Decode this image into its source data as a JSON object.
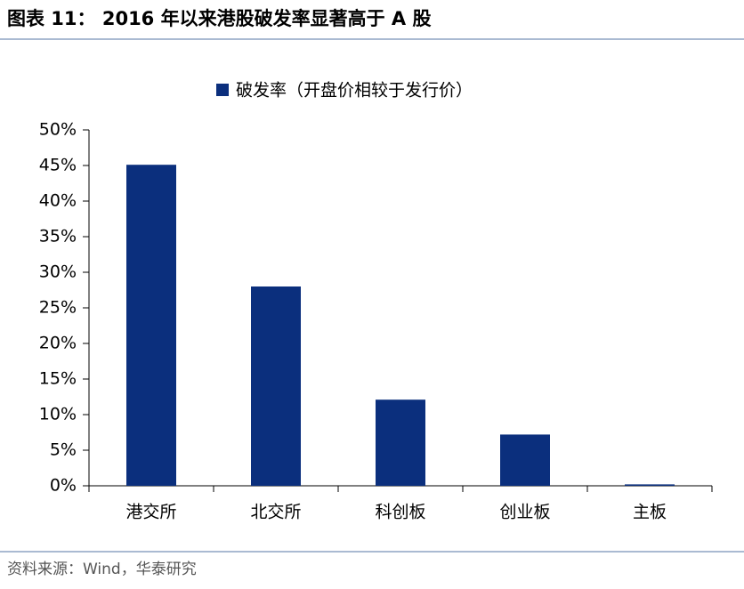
{
  "chart_data": {
    "type": "bar",
    "title": "图表 11：  2016 年以来港股破发率显著高于 A 股",
    "source": "资料来源：Wind，华泰研究",
    "categories": [
      "港交所",
      "北交所",
      "科创板",
      "创业板",
      "主板"
    ],
    "series": [
      {
        "name": "破发率（开盘价相较于发行价）",
        "color": "#0b2f7d",
        "values": [
          45.1,
          28.0,
          12.1,
          7.2,
          0.2
        ]
      }
    ],
    "ylim": [
      0,
      50
    ],
    "yticks": [
      {
        "value": 0,
        "label": "0%"
      },
      {
        "value": 5,
        "label": "5%"
      },
      {
        "value": 10,
        "label": "10%"
      },
      {
        "value": 15,
        "label": "15%"
      },
      {
        "value": 20,
        "label": "20%"
      },
      {
        "value": 25,
        "label": "25%"
      },
      {
        "value": 30,
        "label": "30%"
      },
      {
        "value": 35,
        "label": "35%"
      },
      {
        "value": 40,
        "label": "40%"
      },
      {
        "value": 45,
        "label": "45%"
      },
      {
        "value": 50,
        "label": "50%"
      }
    ],
    "legend": "top",
    "grid": false
  }
}
